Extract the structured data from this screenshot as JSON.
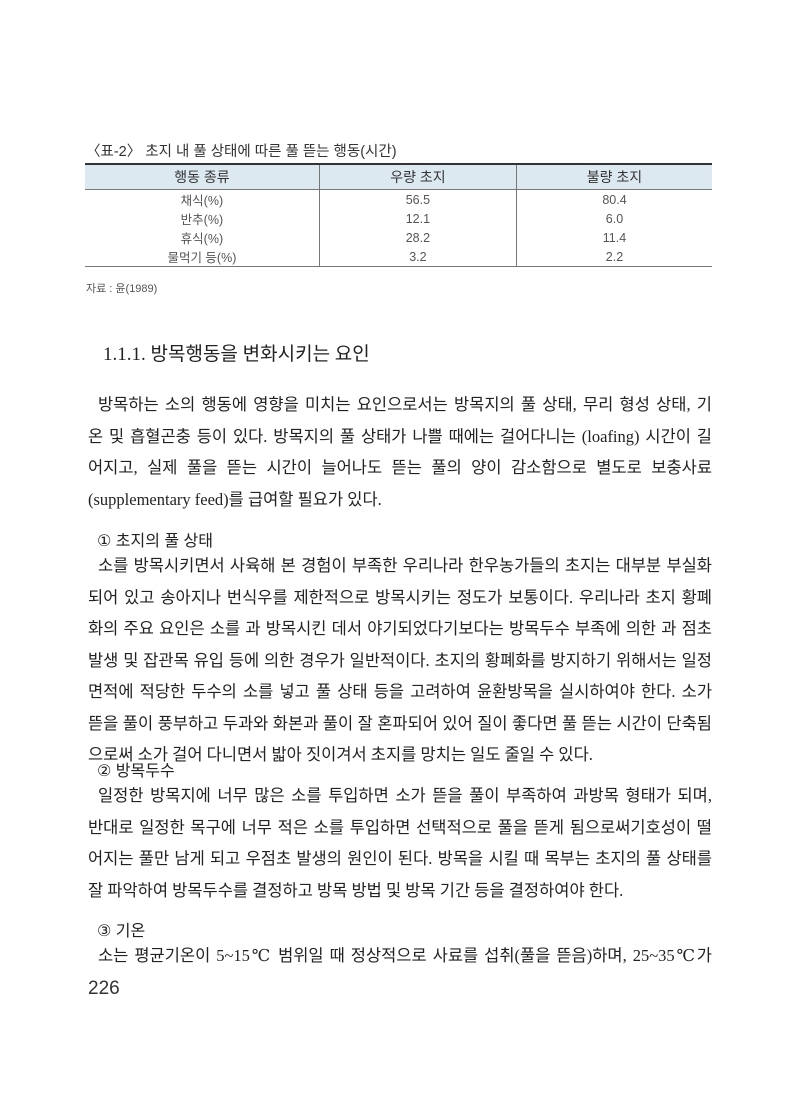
{
  "table": {
    "title": "〈표-2〉 초지 내 풀 상태에 따른 풀 뜯는 행동(시간)",
    "headers": [
      "행동 종류",
      "우량 초지",
      "불량 초지"
    ],
    "rows": [
      [
        "채식(%)",
        "56.5",
        "80.4"
      ],
      [
        "반추(%)",
        "12.1",
        "6.0"
      ],
      [
        "휴식(%)",
        "28.2",
        "11.4"
      ],
      [
        "물먹기 등(%)",
        "3.2",
        "2.2"
      ]
    ],
    "source": "자료 : 윤(1989)"
  },
  "heading": "1.1.1. 방목행동을 변화시키는 요인",
  "intro_lines": [
    "방목하는 소의 행동에 영향을 미치는 요인으로서는 방목지의 풀 상태, 무리 형성 상태, 기",
    "온 및 흡혈곤충 등이 있다. 방목지의 풀 상태가 나쁠 때에는 걸어다니는 (loafing) 시간이 길",
    "어지고, 실제 풀을 뜯는 시간이 늘어나도 뜯는 풀의 양이 감소함으로 별도로 보충사료",
    "(supplementary feed)를 급여할 필요가 있다."
  ],
  "sections": [
    {
      "title": "① 초지의 풀 상태",
      "lines": [
        "소를 방목시키면서 사육해 본 경험이 부족한 우리나라 한우농가들의 초지는 대부분 부실화",
        "되어 있고 송아지나 번식우를 제한적으로 방목시키는 정도가 보통이다. 우리나라 초지 황폐",
        "화의 주요 요인은 소를 과 방목시킨 데서 야기되었다기보다는 방목두수 부족에 의한 과 점초",
        "발생 및 잡관목 유입 등에 의한 경우가 일반적이다. 초지의 황폐화를 방지하기 위해서는 일정",
        "면적에 적당한 두수의 소를 넣고 풀 상태 등을 고려하여 윤환방목을 실시하여야 한다. 소가",
        "뜯을 풀이 풍부하고 두과와 화본과 풀이 잘 혼파되어 있어 질이 좋다면 풀 뜯는 시간이 단축됨",
        "으로써 소가 걸어 다니면서 밟아 짓이겨서 초지를 망치는 일도 줄일 수 있다."
      ]
    },
    {
      "title": "② 방목두수",
      "lines": [
        "일정한 방목지에 너무 많은 소를 투입하면 소가 뜯을 풀이 부족하여 과방목 형태가 되며,",
        "반대로 일정한 목구에 너무 적은 소를 투입하면 선택적으로 풀을 뜯게 됨으로써기호성이 떨",
        "어지는 풀만 남게 되고 우점초 발생의 원인이 된다. 방목을 시킬 때 목부는 초지의 풀 상태를",
        "잘 파악하여 방목두수를 결정하고 방목 방법 및 방목 기간 등을 결정하여야 한다."
      ]
    },
    {
      "title": "③ 기온",
      "lines": [
        "소는 평균기온이 5~15℃ 범위일 때 정상적으로 사료를 섭취(풀을 뜯음)하며, 25~35℃가"
      ]
    }
  ],
  "page_number": "226"
}
